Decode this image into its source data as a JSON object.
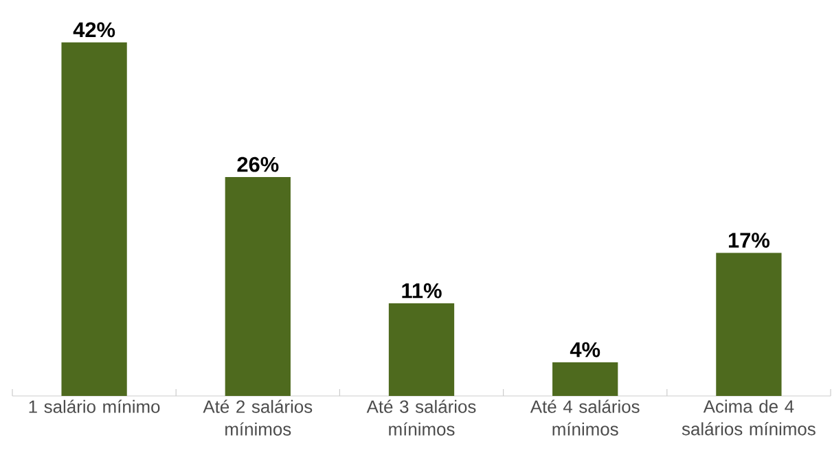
{
  "chart_data": {
    "type": "bar",
    "categories": [
      "1 salário mínimo",
      "Até 2 salários mínimos",
      "Até 3 salários mínimos",
      "Até 4 salários mínimos",
      "Acima de 4 salários mínimos"
    ],
    "values": [
      42,
      26,
      11,
      4,
      17
    ],
    "value_labels": [
      "42%",
      "26%",
      "11%",
      "4%",
      "17%"
    ],
    "color": "#4e6a1e"
  }
}
